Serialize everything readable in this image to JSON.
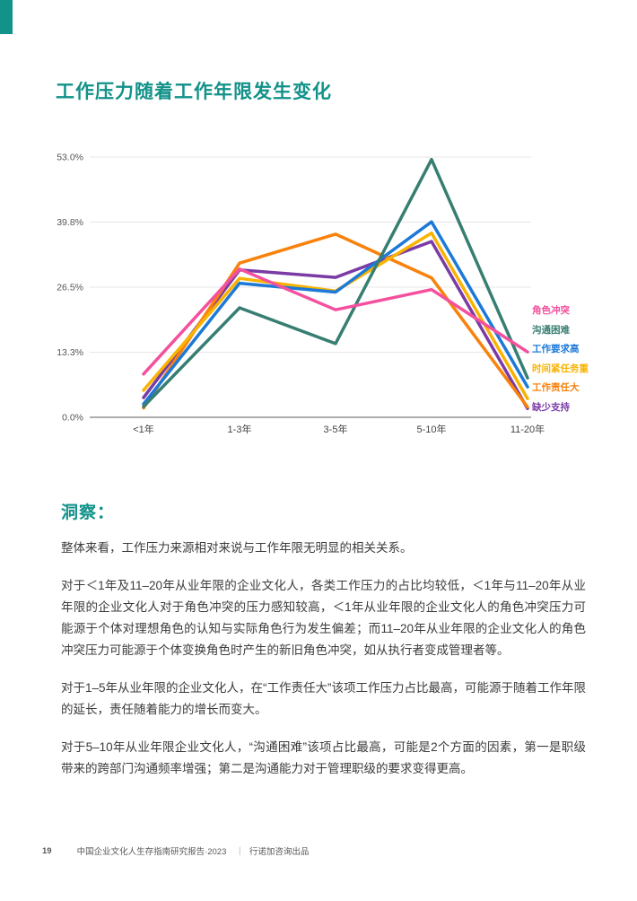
{
  "page": {
    "accent_color": "#129289"
  },
  "header": {
    "title": "工作压力随着工作年限发生变化"
  },
  "chart_data": {
    "type": "line",
    "title": "工作压力随着工作年限发生变化",
    "xlabel": "",
    "ylabel": "",
    "categories": [
      "<1年",
      "1-3年",
      "3-5年",
      "5-10年",
      "11-20年"
    ],
    "series": [
      {
        "name": "角色冲突",
        "color": "#F4509E",
        "values": [
          8.8,
          30.2,
          21.9,
          26.0,
          13.3
        ]
      },
      {
        "name": "沟通困难",
        "color": "#377E72",
        "values": [
          2.2,
          22.3,
          15.0,
          52.5,
          8.0
        ]
      },
      {
        "name": "工作要求高",
        "color": "#1C79D8",
        "values": [
          2.7,
          27.3,
          25.5,
          39.8,
          6.2
        ]
      },
      {
        "name": "时间紧任务重",
        "color": "#F9B301",
        "values": [
          5.5,
          28.3,
          25.7,
          37.5,
          3.8
        ]
      },
      {
        "name": "工作责任大",
        "color": "#F8820B",
        "values": [
          1.9,
          31.4,
          37.3,
          28.4,
          2.1
        ]
      },
      {
        "name": "缺少支持",
        "color": "#7A3BA5",
        "values": [
          4.0,
          30.0,
          28.5,
          35.8,
          1.8
        ]
      }
    ],
    "y_ticks": [
      "0.0%",
      "13.3%",
      "26.5%",
      "39.8%",
      "53.0%"
    ],
    "ylim": [
      0,
      53
    ],
    "grid": true,
    "legend_position": "right"
  },
  "insight": {
    "heading": "洞察：",
    "paragraphs": [
      "整体来看，工作压力来源相对来说与工作年限无明显的相关关系。",
      "对于＜1年及11–20年从业年限的企业文化人，各类工作压力的占比均较低，＜1年与11–20年从业年限的企业文化人对于角色冲突的压力感知较高，＜1年从业年限的企业文化人的角色冲突压力可能源于个体对理想角色的认知与实际角色行为发生偏差；而11–20年从业年限的企业文化人的角色冲突压力可能源于个体变换角色时产生的新旧角色冲突，如从执行者变成管理者等。",
      "对于1–5年从业年限的企业文化人，在“工作责任大”该项工作压力占比最高，可能源于随着工作年限的延长，责任随着能力的增长而变大。",
      "对于5–10年从业年限企业文化人，“沟通困难”该项占比最高，可能是2个方面的因素，第一是职级带来的跨部门沟通频率增强；第二是沟通能力对于管理职级的要求变得更高。"
    ]
  },
  "footer": {
    "page_number": "19",
    "report_title": "中国企业文化人生存指南研究报告·2023",
    "separator": "｜",
    "publisher": "行诺加咨询出品"
  }
}
